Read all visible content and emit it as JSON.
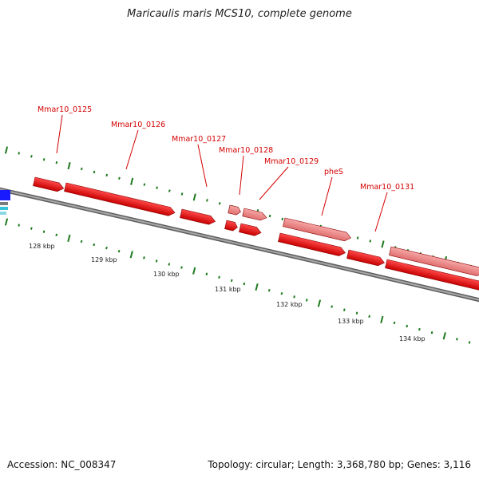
{
  "title": "Maricaulis maris MCS10, complete genome",
  "footer": {
    "accession": "Accession: NC_008347",
    "summary": "Topology: circular; Length: 3,368,780 bp; Genes: 3,116"
  },
  "colors": {
    "cds": "#ff0000",
    "cds_light": "#f08c8c",
    "other_feature": "#1a1aff",
    "backbone": "#808080",
    "gc_ticks": "#1e7a1e",
    "label": "#d40000"
  },
  "scale": {
    "unit": "kbp",
    "ticks": [
      {
        "value": 128,
        "label": "128 kbp"
      },
      {
        "value": 129,
        "label": "129 kbp"
      },
      {
        "value": 130,
        "label": "130 kbp"
      },
      {
        "value": 131,
        "label": "131 kbp"
      },
      {
        "value": 132,
        "label": "132 kbp"
      },
      {
        "value": 133,
        "label": "133 kbp"
      },
      {
        "value": 134,
        "label": "134 kbp"
      }
    ]
  },
  "genes": [
    {
      "name": "Mmar10_0125"
    },
    {
      "name": "Mmar10_0126"
    },
    {
      "name": "Mmar10_0127"
    },
    {
      "name": "Mmar10_0128"
    },
    {
      "name": "Mmar10_0129"
    },
    {
      "name": "pheS"
    },
    {
      "name": "Mmar10_0131"
    }
  ]
}
